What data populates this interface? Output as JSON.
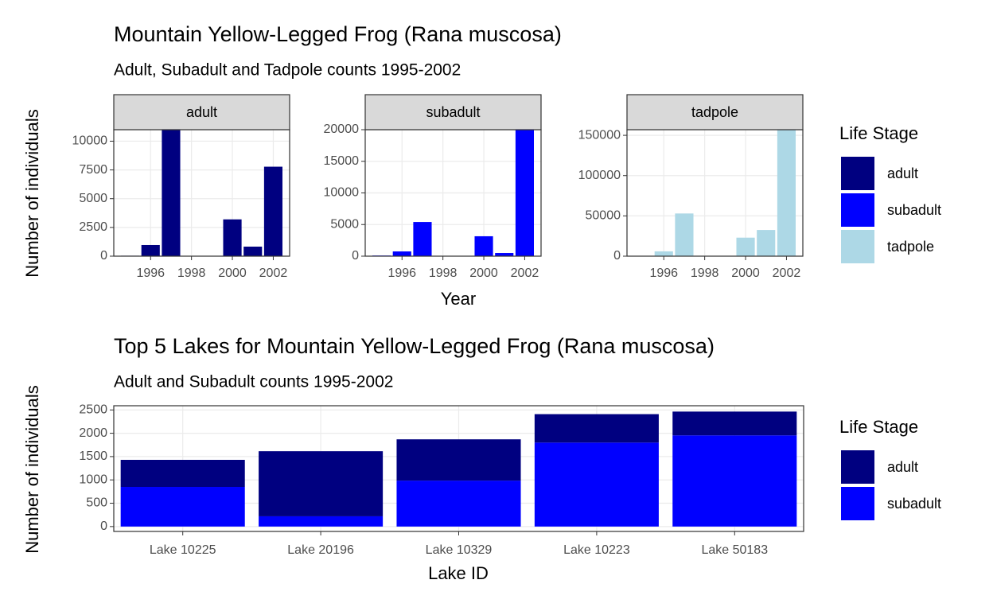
{
  "chart_data": [
    {
      "type": "faceted_bar",
      "title": "Mountain Yellow-Legged Frog (Rana muscosa)",
      "subtitle": "Adult, Subadult and Tadpole counts 1995-2002",
      "xlabel": "Year",
      "ylabel": "Number of individuals",
      "legend_title": "Life Stage",
      "grid": true,
      "facets": [
        {
          "name": "adult",
          "color": "#000080",
          "x": [
            1995,
            1996,
            1997,
            2000,
            2001,
            2002
          ],
          "values": [
            40,
            970,
            11000,
            3200,
            830,
            7780
          ],
          "xlim": [
            1994.2,
            2002.8
          ],
          "xticks": [
            1996,
            1998,
            2000,
            2002
          ],
          "ylim": [
            0,
            11000
          ],
          "yticks": [
            0,
            2500,
            5000,
            7500,
            10000
          ]
        },
        {
          "name": "subadult",
          "color": "#0000ff",
          "x": [
            1995,
            1996,
            1997,
            2000,
            2001,
            2002
          ],
          "values": [
            100,
            750,
            5400,
            3150,
            500,
            20000
          ],
          "xlim": [
            1994.2,
            2002.8
          ],
          "xticks": [
            1996,
            1998,
            2000,
            2002
          ],
          "ylim": [
            0,
            20000
          ],
          "yticks": [
            0,
            5000,
            10000,
            15000,
            20000
          ]
        },
        {
          "name": "tadpole",
          "color": "#add8e6",
          "x": [
            1996,
            1997,
            2000,
            2001,
            2002
          ],
          "values": [
            6000,
            53000,
            23000,
            32500,
            157000
          ],
          "xlim": [
            1994.2,
            2002.8
          ],
          "xticks": [
            1996,
            1998,
            2000,
            2002
          ],
          "ylim": [
            0,
            157000
          ],
          "yticks": [
            0,
            50000,
            100000,
            150000
          ]
        }
      ]
    },
    {
      "type": "stacked_bar",
      "title": "Top 5 Lakes for Mountain Yellow-Legged Frog (Rana muscosa)",
      "subtitle": "Adult and Subadult counts 1995-2002",
      "xlabel": "Lake ID",
      "ylabel": "Number of individuals",
      "legend_title": "Life Stage",
      "grid": true,
      "categories": [
        "Lake 10225",
        "Lake 20196",
        "Lake 10329",
        "Lake 10223",
        "Lake 50183"
      ],
      "series": [
        {
          "name": "adult",
          "color": "#000080",
          "values": [
            580,
            1395,
            885,
            610,
            510
          ]
        },
        {
          "name": "subadult",
          "color": "#0000ff",
          "values": [
            850,
            220,
            985,
            1800,
            1955
          ]
        }
      ],
      "ylim": [
        -105,
        2590
      ],
      "yticks": [
        0,
        500,
        1000,
        1500,
        2000,
        2500
      ]
    }
  ]
}
